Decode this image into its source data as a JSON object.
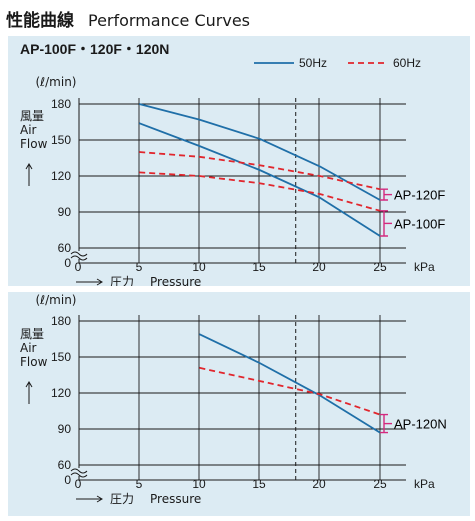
{
  "title": {
    "jp": "性能曲線",
    "en": "Performance Curves"
  },
  "colors": {
    "hz50": "#1f6fa8",
    "hz60": "#e1262d",
    "bracket": "#d42a7e",
    "panel": "#dcebf3",
    "grid": "#1a1a1a"
  },
  "chart_data": [
    {
      "type": "line",
      "title": "AP-100F・120F・120N",
      "ylabel_unit": "(ℓ/min)",
      "ylabel_lines": [
        "風量",
        "Air",
        "Flow"
      ],
      "xlabel_jp": "圧力",
      "xlabel_en": "Pressure",
      "x_unit": "kPa",
      "x_ticks": [
        "0",
        "5",
        "10",
        "15",
        "20",
        "25"
      ],
      "y_ticks": [
        "0",
        "60",
        "90",
        "120",
        "150",
        "180"
      ],
      "xlim": [
        0,
        25
      ],
      "ylim": [
        0,
        180
      ],
      "y_axis_break": true,
      "reference_line_x": 18,
      "legend": {
        "labels": [
          "50Hz",
          "60Hz"
        ],
        "position": "top-right"
      },
      "series": [
        {
          "model": "AP-120F",
          "frequency": "50Hz",
          "x": [
            5,
            10,
            15,
            20,
            25
          ],
          "y": [
            180,
            167,
            151,
            128,
            100
          ]
        },
        {
          "model": "AP-100F",
          "frequency": "50Hz",
          "x": [
            5,
            10,
            15,
            20,
            25
          ],
          "y": [
            164,
            145,
            125,
            102,
            70
          ]
        },
        {
          "model": "AP-120F",
          "frequency": "60Hz",
          "x": [
            5,
            10,
            15,
            20,
            25
          ],
          "y": [
            140,
            136,
            129,
            120,
            109
          ]
        },
        {
          "model": "AP-100F",
          "frequency": "60Hz",
          "x": [
            5,
            10,
            15,
            20,
            25
          ],
          "y": [
            123,
            120,
            114,
            105,
            91
          ]
        }
      ],
      "model_labels": [
        "AP-120F",
        "AP-100F"
      ]
    },
    {
      "type": "line",
      "ylabel_unit": "(ℓ/min)",
      "ylabel_lines": [
        "風量",
        "Air",
        "Flow"
      ],
      "xlabel_jp": "圧力",
      "xlabel_en": "Pressure",
      "x_unit": "kPa",
      "x_ticks": [
        "0",
        "5",
        "10",
        "15",
        "20",
        "25"
      ],
      "y_ticks": [
        "0",
        "60",
        "90",
        "120",
        "150",
        "180"
      ],
      "xlim": [
        0,
        25
      ],
      "ylim": [
        0,
        180
      ],
      "y_axis_break": true,
      "reference_line_x": 18,
      "series": [
        {
          "model": "AP-120N",
          "frequency": "50Hz",
          "x": [
            10,
            15,
            20,
            25
          ],
          "y": [
            169,
            145,
            118,
            87
          ]
        },
        {
          "model": "AP-120N",
          "frequency": "60Hz",
          "x": [
            10,
            15,
            20,
            25
          ],
          "y": [
            141,
            130,
            119,
            102
          ]
        }
      ],
      "model_labels": [
        "AP-120N"
      ]
    }
  ]
}
